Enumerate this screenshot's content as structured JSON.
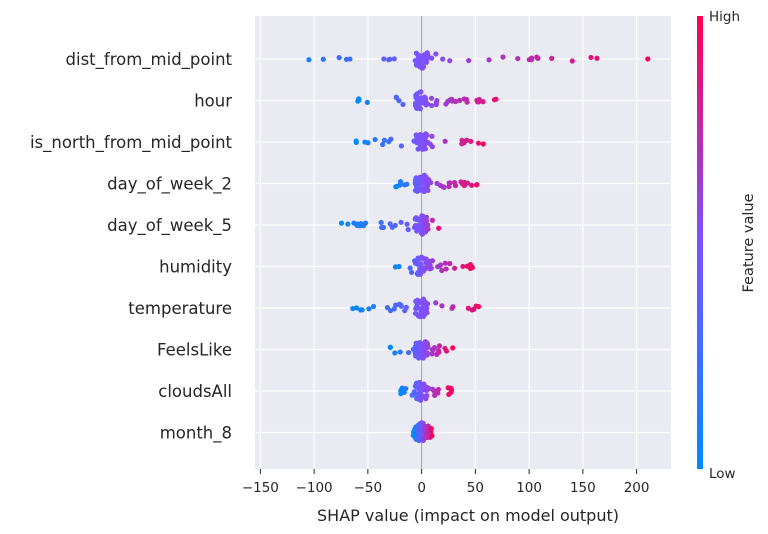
{
  "chart_data": {
    "type": "scatter",
    "subtype": "shap-beeswarm",
    "title": "",
    "xlabel": "SHAP value (impact on model output)",
    "ylabel": "",
    "xlim": [
      -155,
      232
    ],
    "xticks": [
      -150,
      -100,
      -50,
      0,
      50,
      100,
      150,
      200
    ],
    "grid": true,
    "features": [
      "dist_from_mid_point",
      "hour",
      "is_north_from_mid_point",
      "day_of_week_2",
      "day_of_week_5",
      "humidity",
      "temperature",
      "FeelsLike",
      "cloudsAll",
      "month_8"
    ],
    "ranges": [
      [
        -137,
        212
      ],
      [
        -63,
        83
      ],
      [
        -63,
        62
      ],
      [
        -25,
        60
      ],
      [
        -76,
        20
      ],
      [
        -25,
        50
      ],
      [
        -65,
        60
      ],
      [
        -30,
        30
      ],
      [
        -20,
        30
      ],
      [
        -8,
        10
      ]
    ],
    "colorbar": {
      "title": "Feature value",
      "high_label": "High",
      "low_label": "Low",
      "low_color": "#008bfb",
      "mid_color": "#7c52ff",
      "high_color": "#ff0052"
    }
  }
}
